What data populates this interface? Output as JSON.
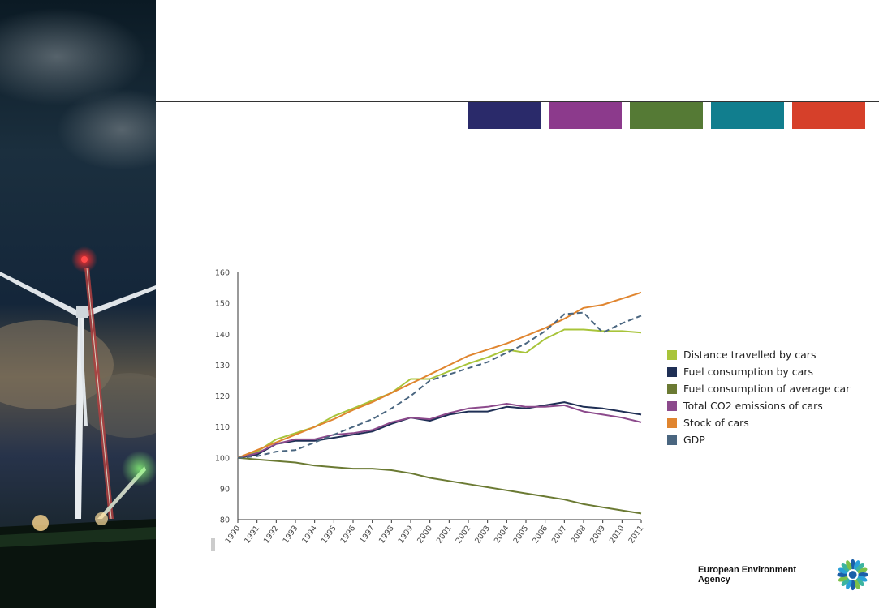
{
  "slide": {
    "brand_colors": [
      "#2a2a6a",
      "#8c3a8c",
      "#557a35",
      "#117e8e",
      "#d6402a"
    ],
    "organization": "European Environment Agency",
    "logo_icon": "eea-sun-logo-icon",
    "photo": "wind-turbine-night-photo"
  },
  "chart_data": {
    "type": "line",
    "x": [
      "1990",
      "1991",
      "1992",
      "1993",
      "1994",
      "1995",
      "1996",
      "1997",
      "1998",
      "1999",
      "2000",
      "2001",
      "2002",
      "2003",
      "2004",
      "2005",
      "2006",
      "2007",
      "2008",
      "2009",
      "2010",
      "2011"
    ],
    "ylim": [
      80,
      160
    ],
    "yticks": [
      80,
      90,
      100,
      110,
      120,
      130,
      140,
      150,
      160
    ],
    "grid": false,
    "legend_position": "right",
    "series": [
      {
        "name": "Distance travelled by cars",
        "color": "#a8c43a",
        "dashed": false,
        "values": [
          100,
          102,
          106,
          108,
          110,
          113.5,
          116,
          118.5,
          121,
          125.5,
          125.5,
          128,
          130.5,
          132.5,
          135,
          134,
          138.5,
          141.5,
          141.5,
          141,
          141,
          140.5
        ]
      },
      {
        "name": "Fuel consumption by cars",
        "color": "#1f2f55",
        "dashed": false,
        "values": [
          100,
          101,
          104.5,
          105.5,
          105.5,
          106.5,
          107.5,
          108.5,
          111,
          113,
          112,
          114,
          115,
          115,
          116.5,
          116,
          117,
          118,
          116.5,
          116,
          115,
          114
        ]
      },
      {
        "name": "Fuel consumption of average car",
        "color": "#6b7a33",
        "dashed": false,
        "values": [
          100,
          99.5,
          99,
          98.5,
          97.5,
          97,
          96.5,
          96.5,
          96,
          95,
          93.5,
          92.5,
          91.5,
          90.5,
          89.5,
          88.5,
          87.5,
          86.5,
          85,
          84,
          83,
          82
        ]
      },
      {
        "name": "Total CO2 emissions of cars",
        "color": "#8c4a8c",
        "dashed": false,
        "values": [
          100,
          101.5,
          104.5,
          106,
          106,
          107.5,
          108,
          109,
          111.5,
          113,
          112.5,
          114.5,
          116,
          116.5,
          117.5,
          116.5,
          116.5,
          117,
          115,
          114,
          113,
          111.5
        ]
      },
      {
        "name": "Stock of cars",
        "color": "#e0852f",
        "dashed": false,
        "values": [
          100,
          102.5,
          105,
          107.5,
          110,
          112.5,
          115.5,
          118,
          121,
          124,
          127,
          130,
          133,
          135,
          137,
          139.5,
          142,
          145,
          148.5,
          149.5,
          151.5,
          153.5
        ]
      },
      {
        "name": "GDP",
        "color": "#4a6680",
        "dashed": true,
        "values": [
          100,
          100.5,
          102,
          102.5,
          105,
          107.5,
          110,
          112.5,
          116,
          120,
          125,
          127,
          129,
          131,
          134,
          137,
          141,
          146.5,
          147,
          140.5,
          143.5,
          146
        ]
      }
    ]
  }
}
